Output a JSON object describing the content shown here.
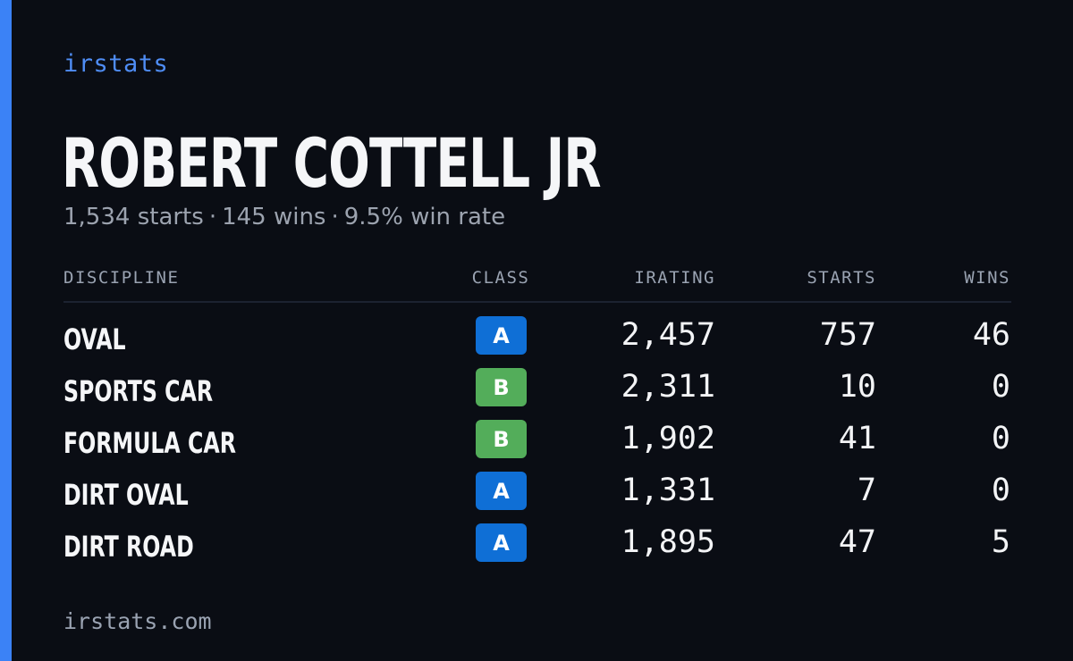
{
  "brand": "irstats",
  "player": {
    "name": "ROBERT COTTELL JR",
    "starts_text": "1,534 starts",
    "wins_text": "145 wins",
    "win_rate_text": "9.5% win rate",
    "separator": "·"
  },
  "table": {
    "headers": {
      "discipline": "DISCIPLINE",
      "class": "CLASS",
      "irating": "IRATING",
      "starts": "STARTS",
      "wins": "WINS"
    },
    "rows": [
      {
        "discipline": "OVAL",
        "class": "A",
        "irating": "2,457",
        "starts": "757",
        "wins": "46"
      },
      {
        "discipline": "SPORTS CAR",
        "class": "B",
        "irating": "2,311",
        "starts": "10",
        "wins": "0"
      },
      {
        "discipline": "FORMULA CAR",
        "class": "B",
        "irating": "1,902",
        "starts": "41",
        "wins": "0"
      },
      {
        "discipline": "DIRT OVAL",
        "class": "A",
        "irating": "1,331",
        "starts": "7",
        "wins": "0"
      },
      {
        "discipline": "DIRT ROAD",
        "class": "A",
        "irating": "1,895",
        "starts": "47",
        "wins": "5"
      }
    ]
  },
  "class_colors": {
    "A": "#0f6fd6",
    "B": "#53ad5a"
  },
  "colors": {
    "background": "#0a0d14",
    "accent": "#3b82f6",
    "brand": "#4f8df5"
  },
  "footer": "irstats.com"
}
